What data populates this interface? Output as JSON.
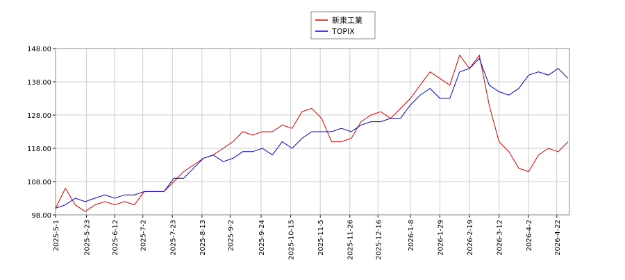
{
  "chart_data": {
    "type": "line",
    "x": [
      "2025-5-1",
      "2025-5-8",
      "2025-5-15",
      "2025-5-22",
      "2025-5-29",
      "2025-6-5",
      "2025-6-12",
      "2025-6-19",
      "2025-6-26",
      "2025-7-3",
      "2025-7-10",
      "2025-7-17",
      "2025-7-24",
      "2025-7-31",
      "2025-8-7",
      "2025-8-14",
      "2025-8-21",
      "2025-8-28",
      "2025-9-4",
      "2025-9-11",
      "2025-9-18",
      "2025-9-25",
      "2025-10-2",
      "2025-10-9",
      "2025-10-16",
      "2025-10-23",
      "2025-10-30",
      "2025-11-6",
      "2025-11-13",
      "2025-11-20",
      "2025-11-27",
      "2025-12-4",
      "2025-12-11",
      "2025-12-18",
      "2025-12-25",
      "2026-1-1",
      "2026-1-8",
      "2026-1-15",
      "2026-1-22",
      "2026-1-29",
      "2026-2-5",
      "2026-2-12",
      "2026-2-19",
      "2026-2-26",
      "2026-3-5",
      "2026-3-12",
      "2026-3-19",
      "2026-3-26",
      "2026-4-2",
      "2026-4-9",
      "2026-4-16",
      "2026-4-23",
      "2026-4-30"
    ],
    "series": [
      {
        "name": "新東工業",
        "color": "#dd0000",
        "values": [
          100,
          106,
          101,
          99,
          101,
          102,
          101,
          102,
          101,
          105,
          105,
          105,
          108,
          111,
          113,
          115,
          116,
          118,
          120,
          123,
          122,
          123,
          123,
          125,
          124,
          129,
          130,
          127,
          120,
          120,
          121,
          126,
          128,
          129,
          127,
          130,
          133,
          137,
          141,
          139,
          137,
          146,
          142,
          146,
          131,
          120,
          117,
          112,
          111,
          116,
          118,
          117,
          120
        ]
      },
      {
        "name": "TOPIX",
        "color": "#0000cc",
        "values": [
          100,
          101,
          103,
          102,
          103,
          104,
          103,
          104,
          104,
          105,
          105,
          105,
          109,
          109,
          112,
          115,
          116,
          114,
          115,
          117,
          117,
          118,
          116,
          120,
          118,
          121,
          123,
          123,
          123,
          124,
          123,
          125,
          126,
          126,
          127,
          127,
          131,
          134,
          136,
          133,
          133,
          141,
          142,
          145,
          137,
          135,
          134,
          136,
          140,
          141,
          140,
          142,
          139
        ]
      }
    ],
    "xlim": [
      "2025-5-1",
      "2026-5-1"
    ],
    "xticks": [
      "2025-5-1",
      "2025-5-23",
      "2025-6-12",
      "2025-7-2",
      "2025-7-23",
      "2025-8-13",
      "2025-9-2",
      "2025-9-24",
      "2025-10-15",
      "2025-11-5",
      "2025-11-26",
      "2025-12-16",
      "2026-1-8",
      "2026-1-29",
      "2026-2-19",
      "2026-3-12",
      "2026-4-2",
      "2026-4-22"
    ],
    "ylim": [
      98,
      148
    ],
    "yticks": [
      {
        "value": 98,
        "label": "98.00"
      },
      {
        "value": 108,
        "label": "108.00"
      },
      {
        "value": 118,
        "label": "118.00"
      },
      {
        "value": 128,
        "label": "128.00"
      },
      {
        "value": 138,
        "label": "138.00"
      },
      {
        "value": 148,
        "label": "148.00"
      }
    ],
    "grid": true,
    "legend": "top"
  }
}
